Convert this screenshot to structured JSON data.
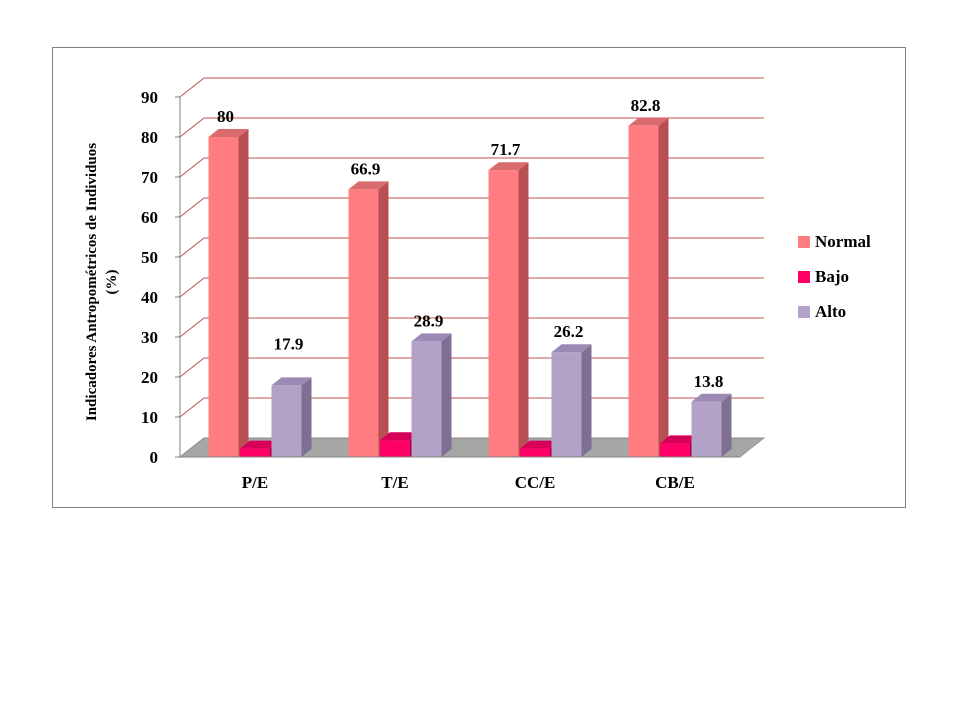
{
  "chart_data": {
    "type": "bar",
    "categories": [
      "P/E",
      "T/E",
      "CC/E",
      "CB/E"
    ],
    "series": [
      {
        "name": "Normal",
        "values": [
          80,
          66.9,
          71.7,
          82.8
        ],
        "color": "#ff7c80",
        "side": "#b84f52",
        "top": "#d96a6d"
      },
      {
        "name": "Bajo",
        "values": [
          2.1,
          4.2,
          2.1,
          3.4
        ],
        "color": "#ff0066",
        "side": "#a8004a",
        "top": "#d6005a"
      },
      {
        "name": "Alto",
        "values": [
          17.9,
          28.9,
          26.2,
          13.8
        ],
        "color": "#b3a2c7",
        "side": "#7e6f93",
        "top": "#9b8ab3"
      }
    ],
    "data_labels": [
      [
        "80",
        "66.9",
        "71.7",
        "82.8"
      ],
      [
        null,
        null,
        null,
        null
      ],
      [
        "17.9",
        "28.9",
        "26.2",
        "13.8"
      ]
    ],
    "yticks": [
      "0",
      "10",
      "20",
      "30",
      "40",
      "50",
      "60",
      "70",
      "80",
      "90"
    ],
    "ylim": [
      0,
      90
    ],
    "ylabel_line1": "Indicadores Antropométricos de Individuos",
    "ylabel_line2": "(%)",
    "legend_position": "right",
    "grid": true,
    "grid_color": "#c0504d",
    "floor_color": "#a6a6a6"
  }
}
